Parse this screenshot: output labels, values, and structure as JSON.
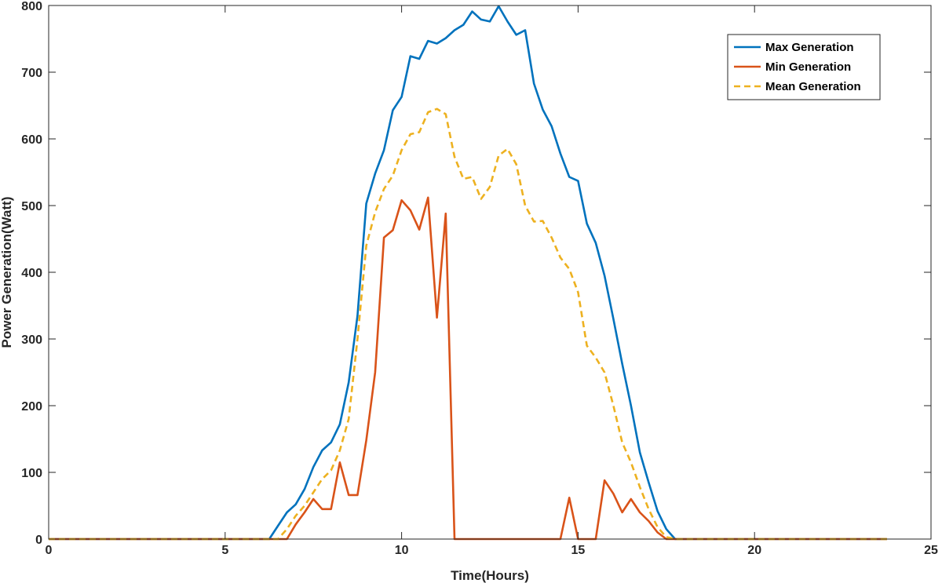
{
  "chart_data": {
    "type": "line",
    "title": "",
    "xlabel": "Time(Hours)",
    "ylabel": "Power Generation(Watt)",
    "xlim": [
      0,
      25
    ],
    "ylim": [
      0,
      800
    ],
    "xticks": [
      0,
      5,
      10,
      15,
      20,
      25
    ],
    "yticks": [
      0,
      100,
      200,
      300,
      400,
      500,
      600,
      700,
      800
    ],
    "grid": false,
    "legend_position": "top-right",
    "series": [
      {
        "name": "Max Generation",
        "color": "#0072BD",
        "style": "solid",
        "points": [
          [
            0,
            0
          ],
          [
            6.25,
            0
          ],
          [
            6.5,
            20
          ],
          [
            6.75,
            40
          ],
          [
            7.0,
            52
          ],
          [
            7.25,
            75
          ],
          [
            7.5,
            108
          ],
          [
            7.75,
            133
          ],
          [
            8.0,
            145
          ],
          [
            8.25,
            172
          ],
          [
            8.5,
            235
          ],
          [
            8.75,
            335
          ],
          [
            9.0,
            503
          ],
          [
            9.25,
            548
          ],
          [
            9.5,
            583
          ],
          [
            9.75,
            643
          ],
          [
            10.0,
            663
          ],
          [
            10.25,
            724
          ],
          [
            10.5,
            720
          ],
          [
            10.75,
            747
          ],
          [
            11.0,
            743
          ],
          [
            11.25,
            751
          ],
          [
            11.5,
            763
          ],
          [
            11.75,
            771
          ],
          [
            12.0,
            791
          ],
          [
            12.25,
            779
          ],
          [
            12.5,
            776
          ],
          [
            12.75,
            799
          ],
          [
            13.0,
            776
          ],
          [
            13.25,
            756
          ],
          [
            13.5,
            763
          ],
          [
            13.75,
            683
          ],
          [
            14.0,
            644
          ],
          [
            14.25,
            619
          ],
          [
            14.5,
            578
          ],
          [
            14.75,
            543
          ],
          [
            15.0,
            537
          ],
          [
            15.25,
            473
          ],
          [
            15.5,
            444
          ],
          [
            15.75,
            395
          ],
          [
            16.0,
            330
          ],
          [
            16.25,
            263
          ],
          [
            16.5,
            200
          ],
          [
            16.75,
            130
          ],
          [
            17.0,
            85
          ],
          [
            17.25,
            42
          ],
          [
            17.5,
            15
          ],
          [
            17.75,
            0
          ],
          [
            23.75,
            0
          ]
        ]
      },
      {
        "name": "Min Generation",
        "color": "#D95319",
        "style": "solid",
        "points": [
          [
            0,
            0
          ],
          [
            6.75,
            0
          ],
          [
            7.0,
            22
          ],
          [
            7.25,
            40
          ],
          [
            7.5,
            60
          ],
          [
            7.75,
            45
          ],
          [
            8.0,
            45
          ],
          [
            8.25,
            115
          ],
          [
            8.5,
            66
          ],
          [
            8.75,
            66
          ],
          [
            9.0,
            148
          ],
          [
            9.25,
            250
          ],
          [
            9.5,
            452
          ],
          [
            9.75,
            463
          ],
          [
            10.0,
            508
          ],
          [
            10.25,
            493
          ],
          [
            10.5,
            464
          ],
          [
            10.75,
            512
          ],
          [
            11.0,
            332
          ],
          [
            11.25,
            488
          ],
          [
            11.5,
            0
          ],
          [
            14.5,
            0
          ],
          [
            14.75,
            62
          ],
          [
            15.0,
            0
          ],
          [
            15.5,
            0
          ],
          [
            15.75,
            88
          ],
          [
            16.0,
            68
          ],
          [
            16.25,
            40
          ],
          [
            16.5,
            60
          ],
          [
            16.75,
            40
          ],
          [
            17.0,
            27
          ],
          [
            17.25,
            10
          ],
          [
            17.5,
            0
          ],
          [
            23.75,
            0
          ]
        ]
      },
      {
        "name": "Mean Generation",
        "color": "#EDB120",
        "style": "dashed",
        "points": [
          [
            0,
            0
          ],
          [
            6.5,
            0
          ],
          [
            6.75,
            15
          ],
          [
            7.0,
            35
          ],
          [
            7.25,
            50
          ],
          [
            7.5,
            70
          ],
          [
            7.75,
            90
          ],
          [
            8.0,
            103
          ],
          [
            8.25,
            133
          ],
          [
            8.5,
            180
          ],
          [
            8.75,
            300
          ],
          [
            9.0,
            440
          ],
          [
            9.25,
            490
          ],
          [
            9.5,
            525
          ],
          [
            9.75,
            545
          ],
          [
            10.0,
            583
          ],
          [
            10.25,
            607
          ],
          [
            10.5,
            610
          ],
          [
            10.75,
            640
          ],
          [
            11.0,
            645
          ],
          [
            11.25,
            637
          ],
          [
            11.5,
            573
          ],
          [
            11.75,
            540
          ],
          [
            12.0,
            543
          ],
          [
            12.25,
            510
          ],
          [
            12.5,
            528
          ],
          [
            12.75,
            575
          ],
          [
            13.0,
            585
          ],
          [
            13.25,
            562
          ],
          [
            13.5,
            500
          ],
          [
            13.75,
            476
          ],
          [
            14.0,
            477
          ],
          [
            14.25,
            452
          ],
          [
            14.5,
            422
          ],
          [
            14.75,
            405
          ],
          [
            15.0,
            370
          ],
          [
            15.25,
            290
          ],
          [
            15.5,
            272
          ],
          [
            15.75,
            250
          ],
          [
            16.0,
            200
          ],
          [
            16.25,
            145
          ],
          [
            16.5,
            115
          ],
          [
            16.75,
            78
          ],
          [
            17.0,
            45
          ],
          [
            17.25,
            18
          ],
          [
            17.5,
            3
          ],
          [
            17.75,
            0
          ],
          [
            23.75,
            0
          ]
        ]
      }
    ]
  }
}
